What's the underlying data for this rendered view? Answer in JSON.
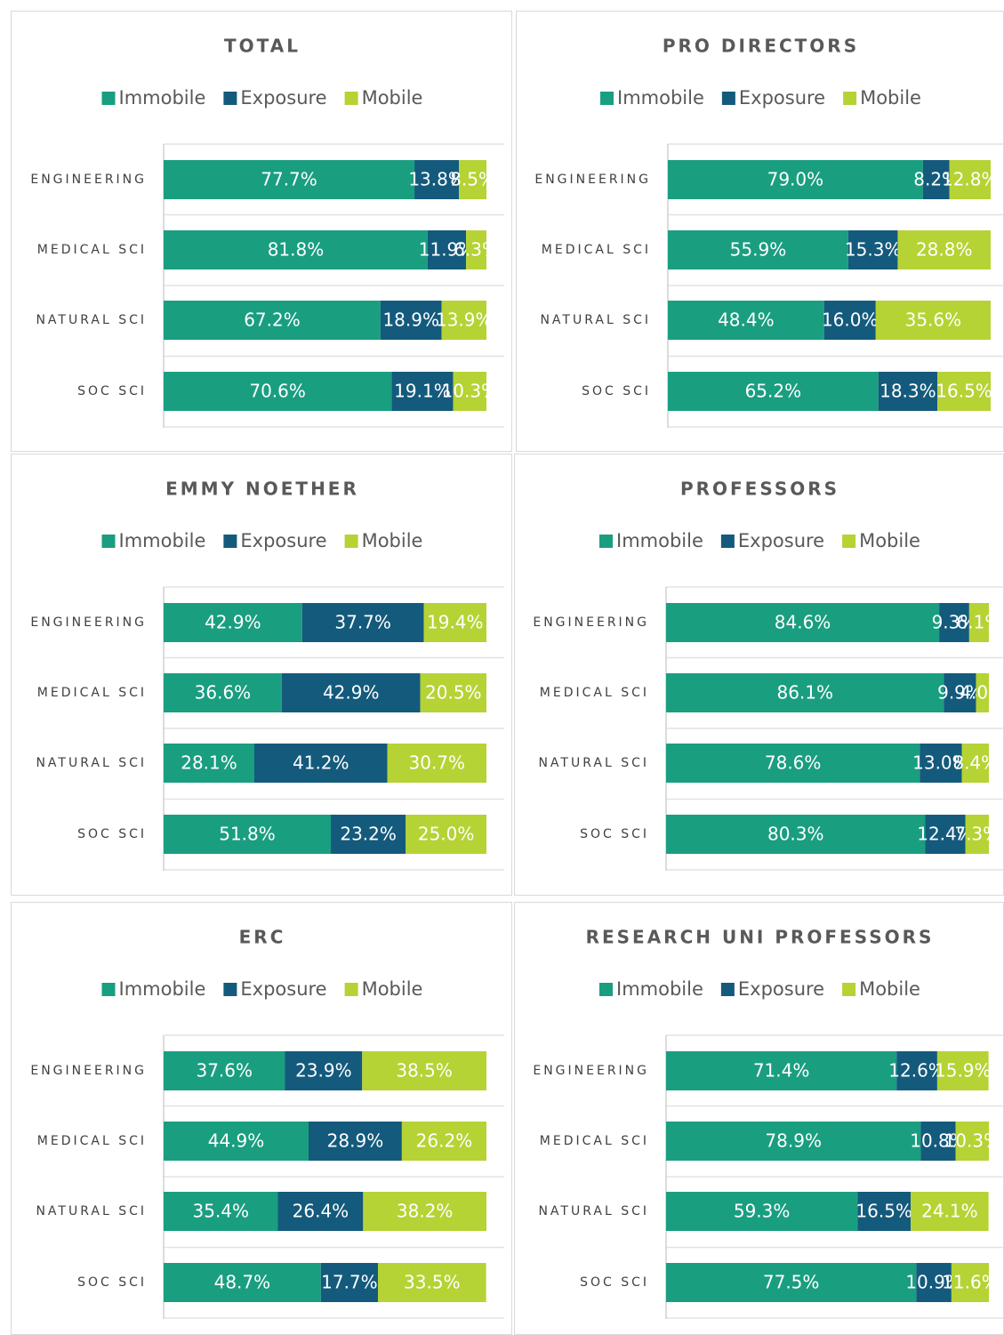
{
  "chart_data": [
    {
      "type": "stacked_bar",
      "title": "TOTAL",
      "categories": [
        "ENGINEERING",
        "MEDICAL SCI",
        "NATURAL SCI",
        "SOC SCI"
      ],
      "xlim": [
        0,
        100
      ],
      "series": [
        {
          "name": "Immobile",
          "color": "#1a9e80",
          "values": [
            77.7,
            81.8,
            67.2,
            70.6
          ],
          "value_labels": [
            "77.7%",
            "81.8%",
            "67.2%",
            "70.6%"
          ]
        },
        {
          "name": "Exposure",
          "color": "#145a7c",
          "values": [
            13.8,
            11.9,
            18.9,
            19.1
          ],
          "value_labels": [
            "13.8%",
            "11.9%",
            "18.9%",
            "19.1%"
          ]
        },
        {
          "name": "Mobile",
          "color": "#b5d334",
          "values": [
            8.5,
            6.3,
            13.9,
            10.3
          ],
          "value_labels": [
            "8.5%",
            "6.3%",
            "13.9%",
            "10.3%"
          ]
        }
      ]
    },
    {
      "type": "stacked_bar",
      "title": "PRO DIRECTORS",
      "categories": [
        "ENGINEERING",
        "MEDICAL SCI",
        "NATURAL SCI",
        "SOC SCI"
      ],
      "xlim": [
        0,
        100
      ],
      "series": [
        {
          "name": "Immobile",
          "color": "#1a9e80",
          "values": [
            79.0,
            55.9,
            48.4,
            65.2
          ],
          "value_labels": [
            "79.0%",
            "55.9%",
            "48.4%",
            "65.2%"
          ]
        },
        {
          "name": "Exposure",
          "color": "#145a7c",
          "values": [
            8.2,
            15.3,
            16.0,
            18.3
          ],
          "value_labels": [
            "8.2%",
            "15.3%",
            "16.0%",
            "18.3%"
          ]
        },
        {
          "name": "Mobile",
          "color": "#b5d334",
          "values": [
            12.8,
            28.8,
            35.6,
            16.5
          ],
          "value_labels": [
            "12.8%",
            "28.8%",
            "35.6%",
            "16.5%"
          ]
        }
      ]
    },
    {
      "type": "stacked_bar",
      "title": "EMMY NOETHER",
      "categories": [
        "ENGINEERING",
        "MEDICAL SCI",
        "NATURAL SCI",
        "SOC SCI"
      ],
      "xlim": [
        0,
        100
      ],
      "series": [
        {
          "name": "Immobile",
          "color": "#1a9e80",
          "values": [
            42.9,
            36.6,
            28.1,
            51.8
          ],
          "value_labels": [
            "42.9%",
            "36.6%",
            "28.1%",
            "51.8%"
          ]
        },
        {
          "name": "Exposure",
          "color": "#145a7c",
          "values": [
            37.7,
            42.9,
            41.2,
            23.2
          ],
          "value_labels": [
            "37.7%",
            "42.9%",
            "41.2%",
            "23.2%"
          ]
        },
        {
          "name": "Mobile",
          "color": "#b5d334",
          "values": [
            19.4,
            20.5,
            30.7,
            25.0
          ],
          "value_labels": [
            "19.4%",
            "20.5%",
            "30.7%",
            "25.0%"
          ]
        }
      ]
    },
    {
      "type": "stacked_bar",
      "title": "PROFESSORS",
      "categories": [
        "ENGINEERING",
        "MEDICAL SCI",
        "NATURAL SCI",
        "SOC SCI"
      ],
      "xlim": [
        0,
        100
      ],
      "series": [
        {
          "name": "Immobile",
          "color": "#1a9e80",
          "values": [
            84.6,
            86.1,
            78.6,
            80.3
          ],
          "value_labels": [
            "84.6%",
            "86.1%",
            "78.6%",
            "80.3%"
          ]
        },
        {
          "name": "Exposure",
          "color": "#145a7c",
          "values": [
            9.3,
            9.9,
            13.0,
            12.4
          ],
          "value_labels": [
            "9.3%",
            "9.9%",
            "13.0%",
            "12.4%"
          ]
        },
        {
          "name": "Mobile",
          "color": "#b5d334",
          "values": [
            6.1,
            4.0,
            8.4,
            7.3
          ],
          "value_labels": [
            "6.1%",
            "4.0%",
            "8.4%",
            "7.3%"
          ]
        }
      ]
    },
    {
      "type": "stacked_bar",
      "title": "ERC",
      "categories": [
        "ENGINEERING",
        "MEDICAL SCI",
        "NATURAL SCI",
        "SOC SCI"
      ],
      "xlim": [
        0,
        100
      ],
      "series": [
        {
          "name": "Immobile",
          "color": "#1a9e80",
          "values": [
            37.6,
            44.9,
            35.4,
            48.7
          ],
          "value_labels": [
            "37.6%",
            "44.9%",
            "35.4%",
            "48.7%"
          ]
        },
        {
          "name": "Exposure",
          "color": "#145a7c",
          "values": [
            23.9,
            28.9,
            26.4,
            17.7
          ],
          "value_labels": [
            "23.9%",
            "28.9%",
            "26.4%",
            "17.7%"
          ]
        },
        {
          "name": "Mobile",
          "color": "#b5d334",
          "values": [
            38.5,
            26.2,
            38.2,
            33.5
          ],
          "value_labels": [
            "38.5%",
            "26.2%",
            "38.2%",
            "33.5%"
          ]
        }
      ]
    },
    {
      "type": "stacked_bar",
      "title": "RESEARCH UNI PROFESSORS",
      "categories": [
        "ENGINEERING",
        "MEDICAL SCI",
        "NATURAL SCI",
        "SOC SCI"
      ],
      "xlim": [
        0,
        100
      ],
      "series": [
        {
          "name": "Immobile",
          "color": "#1a9e80",
          "values": [
            71.4,
            78.9,
            59.3,
            77.5
          ],
          "value_labels": [
            "71.4%",
            "78.9%",
            "59.3%",
            "77.5%"
          ]
        },
        {
          "name": "Exposure",
          "color": "#145a7c",
          "values": [
            12.6,
            10.8,
            16.5,
            10.9
          ],
          "value_labels": [
            "12.6%",
            "10.8%",
            "16.5%",
            "10.9%"
          ]
        },
        {
          "name": "Mobile",
          "color": "#b5d334",
          "values": [
            15.9,
            10.3,
            24.1,
            11.6
          ],
          "value_labels": [
            "15.9%",
            "10.3%",
            "24.1%",
            "11.6%"
          ]
        }
      ]
    }
  ]
}
